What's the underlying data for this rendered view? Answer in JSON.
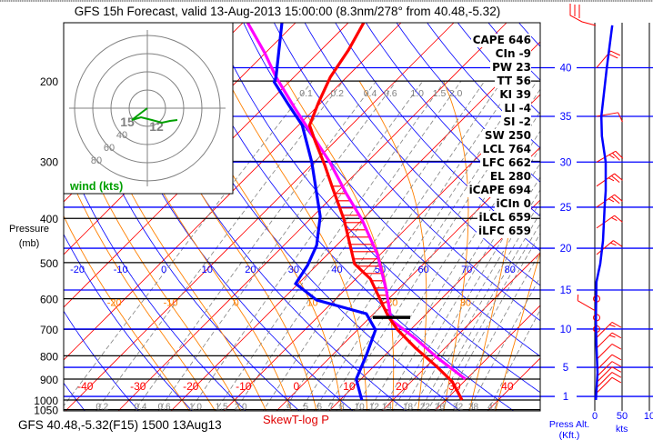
{
  "title": "GFS 15h Forecast, valid 13-Aug-2013 15:00:00 (8.3nm/278° from 40.48,-5.32)",
  "footer": {
    "station": "GFS 40.48,-5.32(F15) 1500 13Aug13",
    "chart_type": "SkewT-log P",
    "press_alt_line1": "Press Alt.",
    "press_alt_line2": "(Kft.)",
    "speed_unit": "kts"
  },
  "pressure_axis": {
    "label_line1": "Pressure",
    "label_line2": "(mb)"
  },
  "indices": [
    {
      "name": "CAPE",
      "value": "646",
      "text": "CAPE 646"
    },
    {
      "name": "CIn",
      "value": "-9",
      "text": "CIn -9"
    },
    {
      "name": "PW",
      "value": "23",
      "text": "PW 23"
    },
    {
      "name": "TT",
      "value": "56",
      "text": "TT 56"
    },
    {
      "name": "KI",
      "value": "39",
      "text": "KI 39"
    },
    {
      "name": "LI",
      "value": "-4",
      "text": "LI -4"
    },
    {
      "name": "SI",
      "value": "-2",
      "text": "SI -2"
    },
    {
      "name": "SW",
      "value": "250",
      "text": "SW 250"
    },
    {
      "name": "LCL",
      "value": "764",
      "text": "LCL 764"
    },
    {
      "name": "LFC",
      "value": "662",
      "text": "LFC 662"
    },
    {
      "name": "EL",
      "value": "280",
      "text": "EL 280"
    },
    {
      "name": "iCAPE",
      "value": "694",
      "text": "iCAPE 694"
    },
    {
      "name": "iCIn",
      "value": "0",
      "text": "iCIn 0"
    },
    {
      "name": "iLCL",
      "value": "659",
      "text": "iLCL 659"
    },
    {
      "name": "iLFC",
      "value": "659",
      "text": "iLFC 659"
    }
  ],
  "colors": {
    "temperature": "#ff0000",
    "dewpoint": "#0000ff",
    "parcel": "#ff00ff",
    "isotherm": "#ff0000",
    "dry_adiabat": "#0000ff",
    "moist_adiabat": "#ff8000",
    "mixing_ratio": "#808080",
    "hodograph": "#00a000",
    "height_line": "#0000ff"
  },
  "chart_data": {
    "type": "line",
    "title": "SkewT-log P",
    "ylabel": "Pressure (mb)",
    "ylim": [
      1050,
      150
    ],
    "isobars": [
      200,
      300,
      400,
      500,
      600,
      700,
      800,
      900,
      1000,
      1050
    ],
    "pressure_tick_labels": [
      "200",
      "300",
      "400",
      "500",
      "600",
      "700",
      "800",
      "900",
      "1000",
      "1050"
    ],
    "isotherm_labels": [
      "-40",
      "-30",
      "-20",
      "-10",
      "0",
      "10",
      "20",
      "30",
      "40"
    ],
    "isotherm_values": [
      -40,
      -30,
      -20,
      -10,
      0,
      10,
      20,
      30,
      40
    ],
    "dry_adiabat_labels": [
      "-20",
      "-10",
      "0",
      "10",
      "20",
      "30",
      "40",
      "50",
      "60",
      "70",
      "80"
    ],
    "dry_adiabat_values": [
      -20,
      -10,
      0,
      10,
      20,
      30,
      40,
      50,
      60,
      70,
      80
    ],
    "moist_adiabat_labels": [
      "-20",
      "-10",
      "0",
      "10",
      "20",
      "30"
    ],
    "moist_adiabat_values": [
      -20,
      -10,
      0,
      10,
      20,
      30
    ],
    "mixing_ratio_top_labels": [
      "0.1",
      "0.2",
      "0.4",
      "0.6",
      "1.0",
      "1.5",
      "2.0"
    ],
    "mixing_ratio_top_values": [
      0.1,
      0.2,
      0.4,
      0.6,
      1.0,
      1.5,
      2.0
    ],
    "mixing_ratio_bottom_labels": [
      "0.2",
      "0.4",
      "0.6",
      "1.0",
      "1.5",
      "2.0",
      "4",
      "5",
      "6",
      "7",
      "8",
      "10",
      "12",
      "14",
      "18",
      "22",
      "26",
      "32",
      "38",
      "47"
    ],
    "mixing_ratio_bottom_values": [
      0.2,
      0.4,
      0.6,
      1.0,
      1.5,
      2.0,
      4,
      5,
      6,
      7,
      8,
      10,
      12,
      14,
      18,
      22,
      26,
      32,
      38,
      47
    ],
    "series": [
      {
        "name": "Temperature",
        "points": [
          [
            149,
            -57.1
          ],
          [
            171,
            -54.8
          ],
          [
            196,
            -53.1
          ],
          [
            223,
            -50.5
          ],
          [
            250,
            -47.9
          ],
          [
            271,
            -43.8
          ],
          [
            306,
            -37.4
          ],
          [
            340,
            -32.1
          ],
          [
            403,
            -23.4
          ],
          [
            503,
            -13.1
          ],
          [
            543,
            -7.2
          ],
          [
            632,
            1.2
          ],
          [
            656,
            3.3
          ],
          [
            702,
            7.6
          ],
          [
            770,
            14.5
          ],
          [
            844,
            21.9
          ],
          [
            912,
            27.8
          ],
          [
            1000,
            33.1
          ]
        ]
      },
      {
        "name": "Dewpoint",
        "points": [
          [
            149,
            -72.6
          ],
          [
            196,
            -63.4
          ],
          [
            201,
            -62.8
          ],
          [
            225,
            -55.9
          ],
          [
            250,
            -49.3
          ],
          [
            301,
            -40.5
          ],
          [
            396,
            -28.6
          ],
          [
            458,
            -23.8
          ],
          [
            507,
            -21.7
          ],
          [
            556,
            -20.5
          ],
          [
            604,
            -13.4
          ],
          [
            647,
            -1.4
          ],
          [
            702,
            3.4
          ],
          [
            795,
            6.4
          ],
          [
            900,
            9.1
          ],
          [
            1000,
            14.1
          ]
        ]
      },
      {
        "name": "Parcel",
        "points": [
          [
            149,
            -79.1
          ],
          [
            173,
            -70.3
          ],
          [
            196,
            -63.4
          ],
          [
            228,
            -54.3
          ],
          [
            262,
            -45.7
          ],
          [
            301,
            -37.1
          ],
          [
            351,
            -28.3
          ],
          [
            403,
            -20.0
          ],
          [
            480,
            -10.5
          ],
          [
            577,
            -1.9
          ],
          [
            668,
            4.5
          ],
          [
            735,
            12.8
          ],
          [
            806,
            20.2
          ],
          [
            900,
            29.8
          ]
        ]
      }
    ],
    "lcl_marker_pressure": 659,
    "cape_shading_range_mb": [
      340,
      660
    ],
    "height_lines": [
      {
        "kft": "1",
        "p": 982
      },
      {
        "kft": "5",
        "p": 848
      },
      {
        "kft": "10",
        "p": 699
      },
      {
        "kft": "15",
        "p": 574
      },
      {
        "kft": "20",
        "p": 465
      },
      {
        "kft": "25",
        "p": 378
      },
      {
        "kft": "30",
        "p": 301
      },
      {
        "kft": "35",
        "p": 239
      },
      {
        "kft": "40",
        "p": 187
      }
    ],
    "wind_speed_axis_labels": [
      "0",
      "50",
      "10"
    ],
    "wind_speed_profile": [
      [
        151,
        32
      ],
      [
        187,
        22
      ],
      [
        239,
        12
      ],
      [
        264,
        13
      ],
      [
        301,
        20
      ],
      [
        348,
        20
      ],
      [
        378,
        18
      ],
      [
        448,
        15
      ],
      [
        503,
        10
      ],
      [
        551,
        3
      ],
      [
        662,
        2
      ],
      [
        759,
        3
      ],
      [
        871,
        5
      ],
      [
        1000,
        2
      ]
    ],
    "wind_barbs": [
      {
        "p": 187,
        "dir": 40,
        "spd": 20
      },
      {
        "p": 239,
        "dir": 80,
        "spd": 10
      },
      {
        "p": 301,
        "dir": 60,
        "spd": 25
      },
      {
        "p": 340,
        "dir": 55,
        "spd": 25
      },
      {
        "p": 378,
        "dir": 55,
        "spd": 25
      },
      {
        "p": 420,
        "dir": 55,
        "spd": 15
      },
      {
        "p": 480,
        "dir": 50,
        "spd": 15
      },
      {
        "p": 600,
        "dir": 0,
        "spd": 0
      },
      {
        "p": 640,
        "dir": 300,
        "spd": 5
      },
      {
        "p": 660,
        "dir": 0,
        "spd": 0
      },
      {
        "p": 699,
        "dir": 0,
        "spd": 0
      },
      {
        "p": 730,
        "dir": 45,
        "spd": 15
      },
      {
        "p": 770,
        "dir": 45,
        "spd": 15
      },
      {
        "p": 815,
        "dir": 45,
        "spd": 10
      },
      {
        "p": 860,
        "dir": 45,
        "spd": 10
      },
      {
        "p": 890,
        "dir": 45,
        "spd": 10
      },
      {
        "p": 915,
        "dir": 45,
        "spd": 10
      },
      {
        "p": 940,
        "dir": 45,
        "spd": 10
      },
      {
        "p": 965,
        "dir": 45,
        "spd": 10
      }
    ],
    "hodograph": {
      "label": "wind (kts)",
      "ring_values": [
        20,
        40,
        60,
        80
      ],
      "ring_labels": [
        "40",
        "60",
        "80"
      ],
      "trace_uv_kts": [
        [
          0,
          0
        ],
        [
          -8,
          -6
        ],
        [
          -17,
          -13
        ],
        [
          -7,
          -10
        ],
        [
          5,
          -13
        ],
        [
          16,
          -16
        ],
        [
          25,
          -14
        ],
        [
          33,
          -13
        ]
      ],
      "point_labels": [
        {
          "text": "15",
          "u": -22,
          "v": -15
        },
        {
          "text": "12",
          "u": 10,
          "v": -20
        }
      ]
    }
  }
}
